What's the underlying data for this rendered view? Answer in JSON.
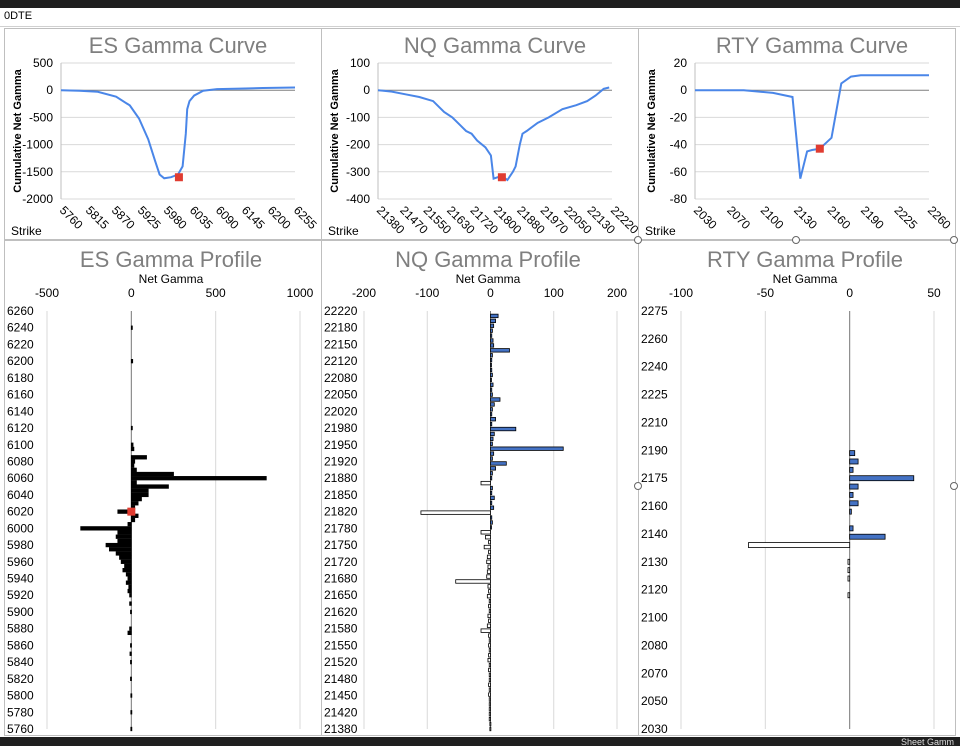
{
  "sheet": {
    "cell_a1": "0DTE",
    "footer_partial": "Sheet Gamm"
  },
  "colors": {
    "line": "#4a86e8",
    "marker": "#e03c31",
    "bar_blue": "#4472c4",
    "grid": "#d9d9d9"
  },
  "curves": [
    {
      "title": "ES Gamma Curve",
      "ylabel": "Cumulative Net Gamma",
      "xlabel": "Strike",
      "yticks": [
        "500",
        "0",
        "-500",
        "-1000",
        "-1500",
        "-2000"
      ],
      "xticks": [
        "5760",
        "5815",
        "5870",
        "5925",
        "5980",
        "6035",
        "6090",
        "6145",
        "6200",
        "6255"
      ]
    },
    {
      "title": "NQ Gamma Curve",
      "ylabel": "Cumulative Net Gamma",
      "xlabel": "Strike",
      "yticks": [
        "100",
        "0",
        "-100",
        "-200",
        "-300",
        "-400"
      ],
      "xticks": [
        "21380",
        "21470",
        "21550",
        "21630",
        "21720",
        "21800",
        "21880",
        "21970",
        "22050",
        "22130",
        "22220"
      ]
    },
    {
      "title": "RTY Gamma Curve",
      "ylabel": "Cumulative Net Gamma",
      "xlabel": "Strike",
      "yticks": [
        "20",
        "0",
        "-20",
        "-40",
        "-60",
        "-80"
      ],
      "xticks": [
        "2030",
        "2070",
        "2100",
        "2130",
        "2160",
        "2190",
        "2225",
        "2260"
      ]
    }
  ],
  "profiles": [
    {
      "title": "ES Gamma Profile",
      "xlabel": "Net Gamma",
      "xticks": [
        "-500",
        "0",
        "500",
        "1000"
      ],
      "yticks": [
        "6260",
        "6240",
        "6220",
        "6200",
        "6180",
        "6160",
        "6140",
        "6120",
        "6100",
        "6080",
        "6060",
        "6040",
        "6020",
        "6000",
        "5980",
        "5960",
        "5940",
        "5920",
        "5900",
        "5880",
        "5860",
        "5840",
        "5820",
        "5800",
        "5780",
        "5760"
      ]
    },
    {
      "title": "NQ Gamma Profile",
      "xlabel": "Net Gamma",
      "xticks": [
        "-200",
        "-100",
        "0",
        "100",
        "200"
      ],
      "yticks": [
        "22220",
        "22180",
        "22150",
        "22120",
        "22080",
        "22050",
        "22020",
        "21980",
        "21950",
        "21920",
        "21880",
        "21850",
        "21820",
        "21780",
        "21750",
        "21720",
        "21680",
        "21650",
        "21620",
        "21580",
        "21550",
        "21520",
        "21480",
        "21450",
        "21420",
        "21380"
      ]
    },
    {
      "title": "RTY Gamma Profile",
      "xlabel": "Net Gamma",
      "xticks": [
        "-100",
        "-50",
        "0",
        "50"
      ],
      "yticks": [
        "2275",
        "2260",
        "2240",
        "2225",
        "2210",
        "2190",
        "2175",
        "2160",
        "2140",
        "2130",
        "2120",
        "2100",
        "2080",
        "2070",
        "2050",
        "2030"
      ]
    }
  ],
  "chart_data": [
    {
      "type": "line",
      "title": "ES Gamma Curve",
      "xlabel": "Strike",
      "ylabel": "Cumulative Net Gamma",
      "ylim": [
        -2000,
        500
      ],
      "xlim": [
        5760,
        6270
      ],
      "x": [
        5760,
        5800,
        5840,
        5880,
        5910,
        5930,
        5950,
        5965,
        5975,
        5985,
        6000,
        6015,
        6025,
        6032,
        6035,
        6040,
        6050,
        6070,
        6100,
        6150,
        6200,
        6270
      ],
      "y": [
        0,
        -10,
        -30,
        -120,
        -280,
        -520,
        -900,
        -1300,
        -1550,
        -1620,
        -1600,
        -1550,
        -1400,
        -800,
        -350,
        -200,
        -100,
        -10,
        20,
        30,
        40,
        50
      ],
      "marker": {
        "x": 6017,
        "y": -1600
      }
    },
    {
      "type": "line",
      "title": "NQ Gamma Curve",
      "xlabel": "Strike",
      "ylabel": "Cumulative Net Gamma",
      "ylim": [
        -400,
        100
      ],
      "xlim": [
        21380,
        22230
      ],
      "x": [
        21380,
        21430,
        21480,
        21530,
        21580,
        21620,
        21650,
        21680,
        21700,
        21720,
        21740,
        21770,
        21790,
        21800,
        21815,
        21830,
        21850,
        21870,
        21880,
        21895,
        21905,
        21920,
        21960,
        22000,
        22050,
        22100,
        22140,
        22170,
        22200,
        22220
      ],
      "y": [
        0,
        -5,
        -15,
        -25,
        -40,
        -80,
        -100,
        -130,
        -150,
        -160,
        -185,
        -210,
        -240,
        -325,
        -320,
        -315,
        -330,
        -300,
        -280,
        -200,
        -160,
        -150,
        -120,
        -100,
        -70,
        -55,
        -40,
        -20,
        5,
        10
      ],
      "marker": {
        "x": 21830,
        "y": -320
      }
    },
    {
      "type": "line",
      "title": "RTY Gamma Curve",
      "xlabel": "Strike",
      "ylabel": "Cumulative Net Gamma",
      "ylim": [
        -80,
        20
      ],
      "xlim": [
        2030,
        2270
      ],
      "x": [
        2030,
        2080,
        2110,
        2130,
        2138,
        2145,
        2150,
        2158,
        2170,
        2180,
        2190,
        2200,
        2270
      ],
      "y": [
        0,
        0,
        -2,
        -5,
        -65,
        -45,
        -44,
        -43,
        -35,
        5,
        10,
        11,
        11
      ],
      "marker": {
        "x": 2158,
        "y": -43
      }
    },
    {
      "type": "bar",
      "title": "ES Gamma Profile",
      "xlabel": "Net Gamma",
      "xlim": [
        -500,
        1000
      ],
      "ylim": [
        5760,
        6260
      ],
      "categories": [
        6240,
        6200,
        6120,
        6100,
        6095,
        6085,
        6080,
        6075,
        6070,
        6065,
        6060,
        6055,
        6050,
        6045,
        6040,
        6035,
        6030,
        6025,
        6020,
        6015,
        6010,
        6005,
        6000,
        5995,
        5990,
        5985,
        5980,
        5975,
        5970,
        5965,
        5960,
        5955,
        5950,
        5945,
        5940,
        5935,
        5930,
        5925,
        5920,
        5910,
        5900,
        5880,
        5875,
        5860,
        5850,
        5840,
        5820,
        5800,
        5780,
        5760
      ],
      "values": [
        5,
        8,
        5,
        10,
        15,
        90,
        20,
        15,
        30,
        250,
        800,
        30,
        220,
        100,
        100,
        60,
        40,
        20,
        -80,
        40,
        20,
        -20,
        -300,
        -80,
        -90,
        -80,
        -150,
        -130,
        -90,
        -70,
        -60,
        -40,
        -50,
        -30,
        -20,
        -30,
        -15,
        -20,
        -10,
        -10,
        -5,
        -10,
        -20,
        -5,
        -8,
        -5,
        -5,
        -3,
        -3,
        -3
      ],
      "marker": {
        "y": 6020,
        "x": 0
      }
    },
    {
      "type": "bar",
      "title": "NQ Gamma Profile",
      "xlabel": "Net Gamma",
      "xlim": [
        -200,
        200
      ],
      "ylim": [
        21380,
        22230
      ],
      "categories": [
        22220,
        22210,
        22200,
        22190,
        22180,
        22170,
        22160,
        22150,
        22140,
        22130,
        22120,
        22110,
        22100,
        22090,
        22080,
        22070,
        22060,
        22050,
        22040,
        22030,
        22020,
        22010,
        22000,
        21990,
        21980,
        21970,
        21960,
        21950,
        21940,
        21930,
        21920,
        21910,
        21900,
        21890,
        21880,
        21870,
        21860,
        21850,
        21840,
        21830,
        21820,
        21810,
        21800,
        21790,
        21780,
        21770,
        21760,
        21750,
        21740,
        21730,
        21720,
        21710,
        21700,
        21690,
        21680,
        21670,
        21660,
        21650,
        21640,
        21630,
        21620,
        21610,
        21600,
        21590,
        21580,
        21570,
        21560,
        21550,
        21540,
        21530,
        21520,
        21510,
        21500,
        21490,
        21480,
        21470,
        21460,
        21450,
        21440,
        21430,
        21420,
        21410,
        21400,
        21390,
        21380
      ],
      "values": [
        12,
        8,
        5,
        3,
        2,
        4,
        5,
        30,
        3,
        2,
        1,
        2,
        3,
        1,
        4,
        2,
        3,
        15,
        6,
        3,
        2,
        8,
        2,
        40,
        6,
        4,
        3,
        115,
        5,
        3,
        25,
        8,
        3,
        2,
        -15,
        3,
        2,
        6,
        2,
        5,
        -110,
        2,
        3,
        1,
        -15,
        -8,
        -3,
        -10,
        -3,
        -5,
        -6,
        -4,
        -5,
        -6,
        -55,
        -4,
        -3,
        -5,
        -2,
        -3,
        -2,
        -4,
        -3,
        -5,
        -15,
        -3,
        -2,
        -3,
        -2,
        -3,
        -4,
        -2,
        -3,
        -2,
        -2,
        -3,
        -2,
        -3,
        -2,
        -2,
        -2,
        -2,
        -2,
        -1,
        -1
      ],
      "marker": null
    },
    {
      "type": "bar",
      "title": "RTY Gamma Profile",
      "xlabel": "Net Gamma",
      "xlim": [
        -100,
        50
      ],
      "ylim": [
        2030,
        2280
      ],
      "categories": [
        2195,
        2190,
        2185,
        2180,
        2175,
        2170,
        2165,
        2160,
        2150,
        2145,
        2140,
        2130,
        2125,
        2120,
        2110
      ],
      "values": [
        3,
        5,
        2,
        38,
        5,
        2,
        5,
        1,
        2,
        21,
        -60,
        -1,
        -1,
        -1,
        -1
      ],
      "marker": null
    }
  ]
}
